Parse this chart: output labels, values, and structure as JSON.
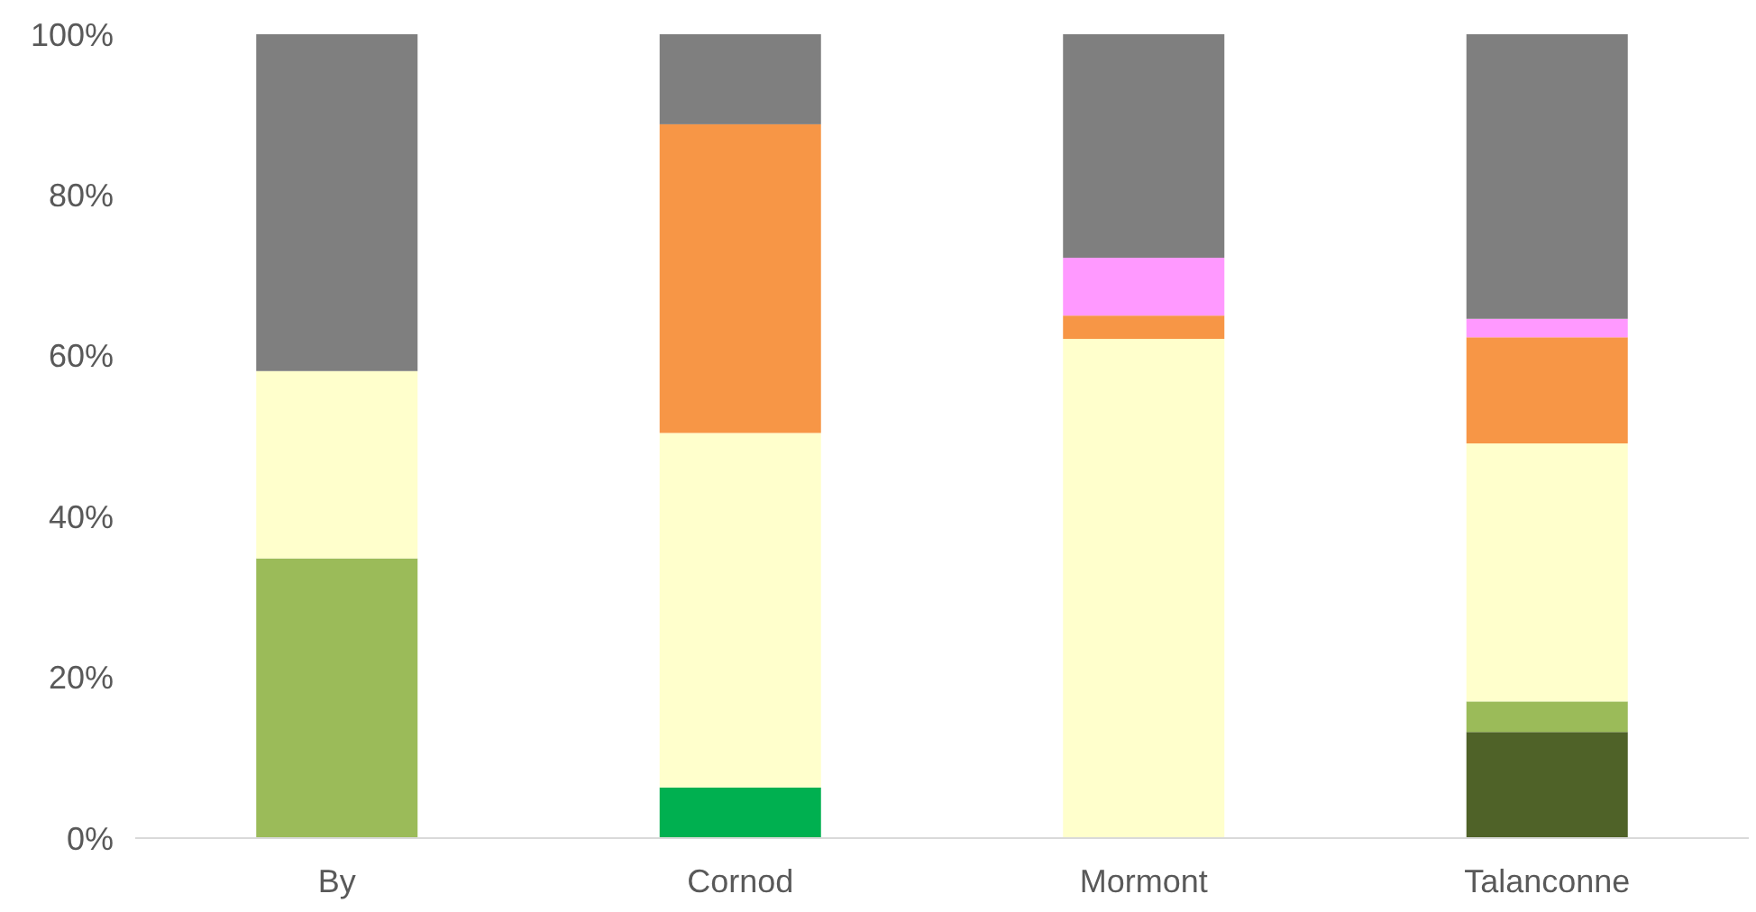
{
  "chart_data": {
    "type": "bar",
    "stacked": true,
    "categories": [
      "By",
      "Cornod",
      "Mormont",
      "Talanconne"
    ],
    "series": [
      {
        "color": "#4f6228",
        "values": [
          0,
          0,
          0,
          13.2
        ]
      },
      {
        "color": "#00b050",
        "values": [
          0,
          6.3,
          0,
          0
        ]
      },
      {
        "color": "#9bbb59",
        "values": [
          34.8,
          0,
          0,
          3.8
        ]
      },
      {
        "color": "#ffffcc",
        "values": [
          23.3,
          44.1,
          62.1,
          32.1
        ]
      },
      {
        "color": "#f79646",
        "values": [
          0,
          38.4,
          2.9,
          13.2
        ]
      },
      {
        "color": "#ff99ff",
        "values": [
          0,
          0,
          7.2,
          2.3
        ]
      },
      {
        "color": "#7f7f7f",
        "values": [
          41.9,
          11.2,
          27.8,
          35.4
        ]
      }
    ],
    "ylim": [
      0,
      100
    ],
    "yticks": [
      {
        "value": 0,
        "label": "0%"
      },
      {
        "value": 20,
        "label": "20%"
      },
      {
        "value": 40,
        "label": "40%"
      },
      {
        "value": 60,
        "label": "60%"
      },
      {
        "value": 80,
        "label": "80%"
      },
      {
        "value": 100,
        "label": "100%"
      }
    ],
    "grid": false
  }
}
